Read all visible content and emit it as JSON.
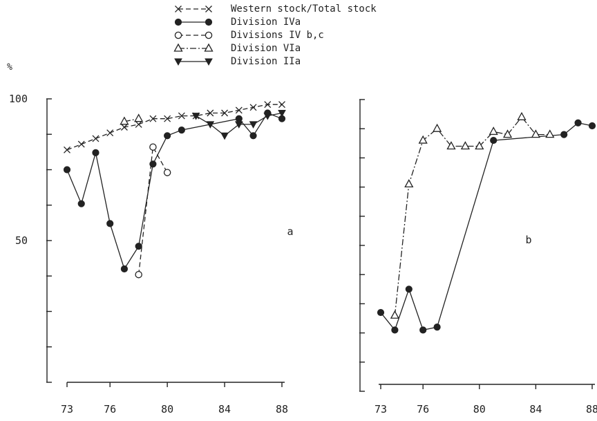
{
  "legend": {
    "placement": "top-center",
    "entries": [
      {
        "key": "western",
        "label": "Western stock/Total stock",
        "marker": "x",
        "line": "dashed"
      },
      {
        "key": "iva",
        "label": "Division IVa",
        "marker": "filled-circle",
        "line": "solid"
      },
      {
        "key": "ivbc",
        "label": "Divisions IV b,c",
        "marker": "open-circle",
        "line": "dashed"
      },
      {
        "key": "via",
        "label": "Division VIa",
        "marker": "open-triangle",
        "line": "dash-dot"
      },
      {
        "key": "iia",
        "label": "Division IIa",
        "marker": "filled-triangle-down",
        "line": "solid"
      }
    ]
  },
  "chart_data": [
    {
      "type": "line",
      "panel_label": "a",
      "y_unit": "%",
      "ylim": [
        0,
        100
      ],
      "xlim": [
        73,
        88
      ],
      "yticks": [
        0,
        12.5,
        25,
        37.5,
        50,
        62.5,
        75,
        87.5,
        100
      ],
      "ytick_labels": [
        {
          "v": 50,
          "t": "50"
        },
        {
          "v": 100,
          "t": "100"
        }
      ],
      "xticks": [
        73,
        76,
        80,
        84,
        88
      ],
      "grid": false,
      "series": [
        {
          "key": "western",
          "name": "Western stock/Total stock",
          "x": [
            73,
            74,
            75,
            76,
            77,
            78,
            79,
            80,
            81,
            82,
            83,
            84,
            85,
            86,
            87,
            88
          ],
          "y": [
            82,
            84,
            86,
            88,
            90,
            91,
            93,
            93,
            94,
            94,
            95,
            95,
            96,
            97,
            98,
            98
          ]
        },
        {
          "key": "iva",
          "name": "Division IVa",
          "x": [
            73,
            74,
            75,
            76,
            77,
            78,
            79,
            80,
            81,
            85,
            86,
            87,
            88
          ],
          "y": [
            75,
            63,
            81,
            56,
            40,
            48,
            77,
            87,
            89,
            93,
            87,
            95,
            93
          ]
        },
        {
          "key": "ivbc",
          "name": "Divisions IV b,c",
          "x": [
            78,
            79,
            80
          ],
          "y": [
            38,
            83,
            74
          ]
        },
        {
          "key": "via",
          "name": "Division VIa",
          "x": [
            77,
            78
          ],
          "y": [
            92,
            93
          ]
        },
        {
          "key": "iia",
          "name": "Division IIa",
          "x": [
            82,
            83,
            84,
            85,
            86,
            87,
            88
          ],
          "y": [
            94,
            91,
            87,
            91,
            91,
            94,
            95
          ]
        }
      ]
    },
    {
      "type": "line",
      "panel_label": "b",
      "ylim": [
        0,
        100
      ],
      "xlim": [
        73,
        88
      ],
      "yticks": [
        0,
        10,
        20,
        30,
        40,
        50,
        60,
        70,
        80,
        90,
        100
      ],
      "xticks": [
        73,
        76,
        80,
        84,
        88
      ],
      "grid": false,
      "series": [
        {
          "key": "iva",
          "name": "Division IVa",
          "x": [
            73,
            74,
            75,
            76,
            77,
            81,
            86,
            87,
            88
          ],
          "y": [
            27,
            21,
            35,
            21,
            22,
            86,
            88,
            92,
            91
          ]
        },
        {
          "key": "via",
          "name": "Division VIa",
          "x": [
            74,
            75,
            76,
            77,
            78,
            79,
            80,
            81,
            82,
            83,
            84,
            85
          ],
          "y": [
            26,
            71,
            86,
            90,
            84,
            84,
            84,
            89,
            88,
            94,
            88,
            88
          ]
        }
      ]
    }
  ]
}
